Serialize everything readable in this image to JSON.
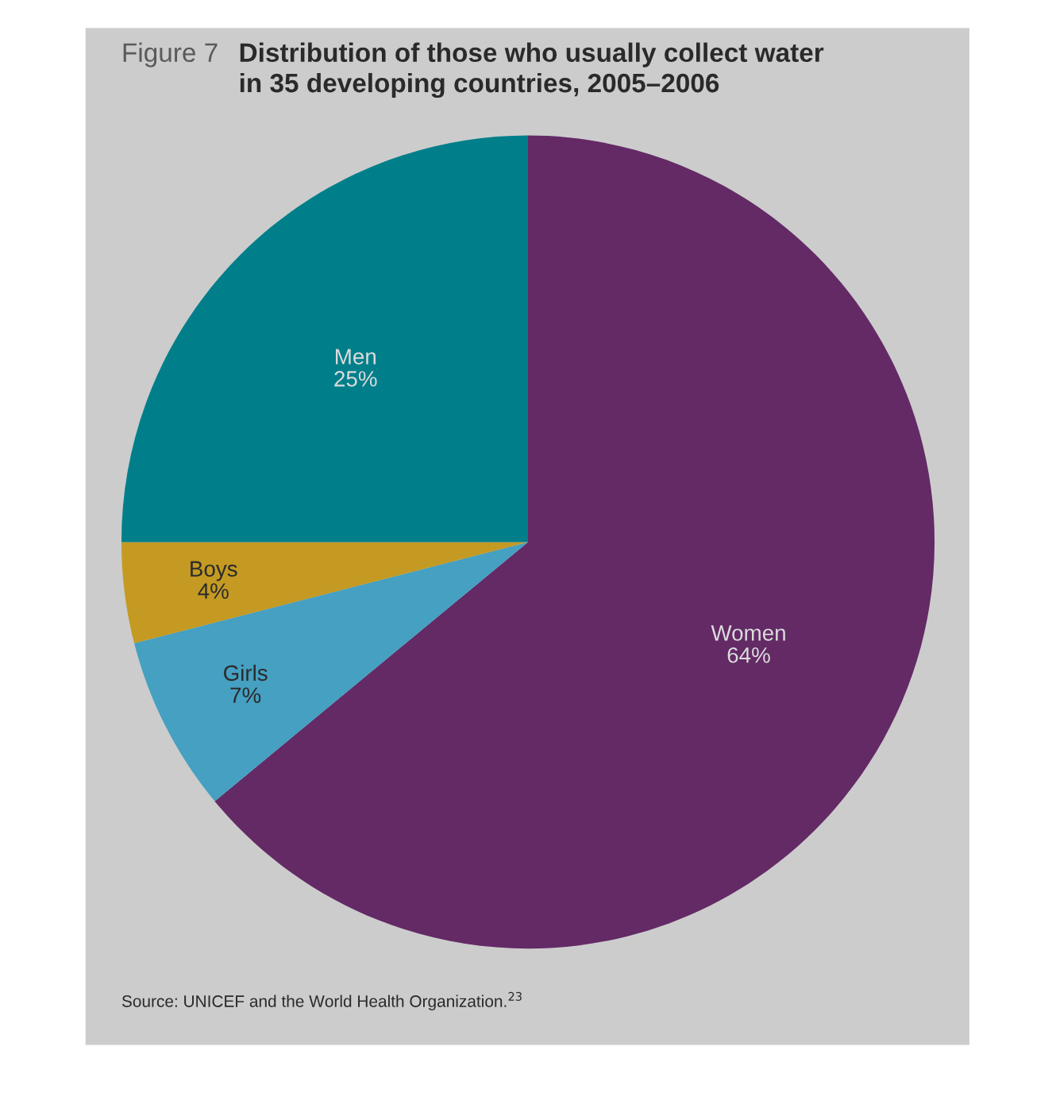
{
  "chart_data": {
    "type": "pie",
    "title": "Distribution of those who usually collect water\nin 35 developing countries, 2005–2006",
    "categories": [
      "Women",
      "Girls",
      "Boys",
      "Men"
    ],
    "values": [
      64,
      7,
      4,
      25
    ],
    "colors": [
      "#632a66",
      "#45a0c2",
      "#c49a22",
      "#007f8b"
    ],
    "value_labels": [
      "64%",
      "7%",
      "4%",
      "25%"
    ],
    "legend": false,
    "annotations": [
      "Figure 7",
      "Source: UNICEF and the World Health Organization.$^{23}$"
    ]
  }
}
